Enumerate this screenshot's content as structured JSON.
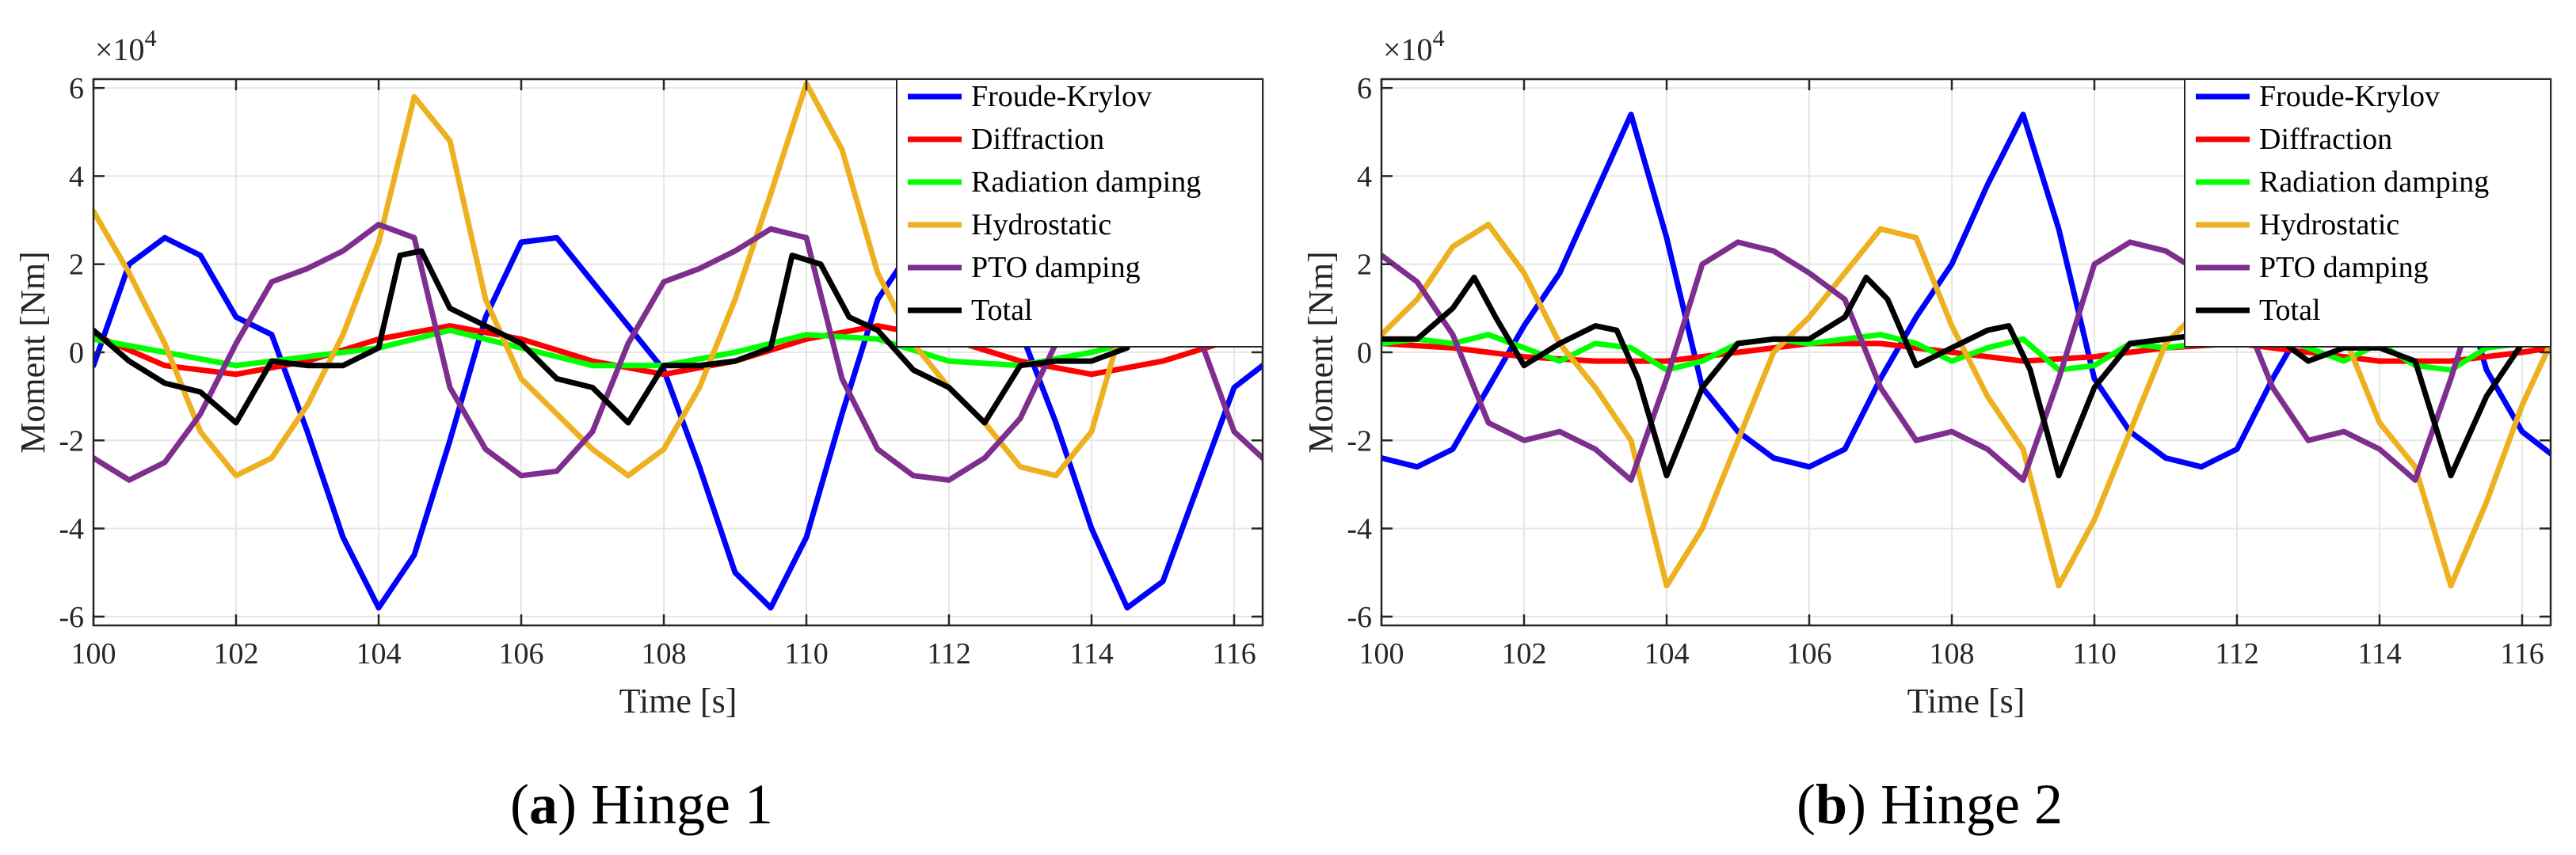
{
  "chart_data": [
    {
      "type": "line",
      "caption_letter": "(a)",
      "caption_text": " Hinge 1",
      "xlabel": "Time [s]",
      "ylabel": "Moment [Nm]",
      "y_multiplier": "×10",
      "y_multiplier_exp": "4",
      "xlim": [
        100,
        116.4
      ],
      "ylim": [
        -6.2,
        6.2
      ],
      "xticks": [
        100,
        102,
        104,
        106,
        108,
        110,
        112,
        114,
        116
      ],
      "yticks": [
        -6,
        -4,
        -2,
        0,
        2,
        4,
        6
      ],
      "grid": true,
      "legend_position": "top-right",
      "series": [
        {
          "name": "Froude-Krylov",
          "color": "#0000ff",
          "x": [
            100,
            100.5,
            101,
            101.5,
            102,
            102.5,
            103,
            103.5,
            104,
            104.5,
            105,
            105.5,
            106,
            106.5,
            107,
            107.5,
            108,
            108.5,
            109,
            109.5,
            110,
            110.5,
            111,
            111.5,
            112,
            112.5,
            113,
            113.5,
            114,
            114.5,
            115,
            115.5,
            116,
            116.4
          ],
          "y": [
            -0.3,
            2.0,
            2.6,
            2.2,
            0.8,
            0.4,
            -1.8,
            -4.2,
            -5.8,
            -4.6,
            -2.0,
            0.8,
            2.5,
            2.6,
            1.6,
            0.6,
            -0.4,
            -2.6,
            -5.0,
            -5.8,
            -4.2,
            -1.4,
            1.2,
            2.4,
            2.6,
            1.4,
            0.5,
            -1.6,
            -4.0,
            -5.8,
            -5.2,
            -3.0,
            -0.8,
            -0.3
          ]
        },
        {
          "name": "Diffraction",
          "color": "#ff0000",
          "x": [
            100,
            101,
            102,
            103,
            104,
            105,
            106,
            107,
            108,
            109,
            110,
            111,
            112,
            113,
            114,
            115,
            116,
            116.4
          ],
          "y": [
            0.4,
            -0.3,
            -0.5,
            -0.2,
            0.3,
            0.6,
            0.3,
            -0.2,
            -0.5,
            -0.2,
            0.3,
            0.6,
            0.3,
            -0.2,
            -0.5,
            -0.2,
            0.3,
            0.4
          ]
        },
        {
          "name": "Radiation damping",
          "color": "#00ff00",
          "x": [
            100,
            101,
            102,
            103,
            104,
            105,
            106,
            107,
            108,
            109,
            110,
            111,
            112,
            113,
            114,
            115,
            116,
            116.4
          ],
          "y": [
            0.3,
            0.0,
            -0.3,
            -0.1,
            0.1,
            0.5,
            0.1,
            -0.3,
            -0.3,
            0.0,
            0.4,
            0.3,
            -0.2,
            -0.3,
            0.0,
            0.4,
            0.3,
            0.3
          ]
        },
        {
          "name": "Hydrostatic",
          "color": "#edb120",
          "x": [
            100,
            100.5,
            101,
            101.5,
            102,
            102.5,
            103,
            103.5,
            104,
            104.5,
            105,
            105.5,
            106,
            106.5,
            107,
            107.5,
            108,
            108.5,
            109,
            109.5,
            110,
            110.5,
            111,
            111.5,
            112,
            112.5,
            113,
            113.5,
            114,
            114.5,
            115,
            115.5,
            116,
            116.4
          ],
          "y": [
            3.2,
            1.8,
            0.2,
            -1.8,
            -2.8,
            -2.4,
            -1.2,
            0.4,
            2.5,
            5.8,
            4.8,
            1.2,
            -0.6,
            -1.4,
            -2.2,
            -2.8,
            -2.2,
            -0.8,
            1.2,
            3.6,
            6.1,
            4.6,
            1.8,
            0.2,
            -0.8,
            -1.6,
            -2.6,
            -2.8,
            -1.8,
            1.0,
            4.0,
            6.0,
            4.6,
            3.4
          ]
        },
        {
          "name": "PTO damping",
          "color": "#7e2f8e",
          "x": [
            100,
            100.5,
            101,
            101.5,
            102,
            102.5,
            103,
            103.5,
            104,
            104.5,
            105,
            105.5,
            106,
            106.5,
            107,
            107.5,
            108,
            108.5,
            109,
            109.5,
            110,
            110.5,
            111,
            111.5,
            112,
            112.5,
            113,
            113.5,
            114,
            114.5,
            115,
            115.5,
            116,
            116.4
          ],
          "y": [
            -2.4,
            -2.9,
            -2.5,
            -1.4,
            0.2,
            1.6,
            1.9,
            2.3,
            2.9,
            2.6,
            -0.8,
            -2.2,
            -2.8,
            -2.7,
            -1.8,
            0.2,
            1.6,
            1.9,
            2.3,
            2.8,
            2.6,
            -0.6,
            -2.2,
            -2.8,
            -2.9,
            -2.4,
            -1.5,
            0.2,
            1.7,
            2.0,
            2.5,
            0.4,
            -1.8,
            -2.4
          ]
        },
        {
          "name": "Total",
          "color": "#000000",
          "x": [
            100,
            100.5,
            101,
            101.5,
            102,
            102.5,
            103,
            103.5,
            104,
            104.3,
            104.6,
            105,
            105.5,
            106,
            106.5,
            107,
            107.5,
            108,
            108.5,
            109,
            109.5,
            109.8,
            110.2,
            110.6,
            111,
            111.5,
            112,
            112.5,
            113,
            113.5,
            114,
            114.5,
            115,
            115.5,
            116,
            116.4
          ],
          "y": [
            0.5,
            -0.2,
            -0.7,
            -0.9,
            -1.6,
            -0.2,
            -0.3,
            -0.3,
            0.1,
            2.2,
            2.3,
            1.0,
            0.6,
            0.2,
            -0.6,
            -0.8,
            -1.6,
            -0.3,
            -0.3,
            -0.2,
            0.1,
            2.2,
            2.0,
            0.8,
            0.5,
            -0.4,
            -0.8,
            -1.6,
            -0.3,
            -0.2,
            -0.2,
            0.1,
            1.8,
            0.8,
            0.5,
            0.5
          ]
        }
      ]
    },
    {
      "type": "line",
      "caption_letter": "(b)",
      "caption_text": " Hinge 2",
      "xlabel": "Time [s]",
      "ylabel": "Moment [Nm]",
      "y_multiplier": "×10",
      "y_multiplier_exp": "4",
      "xlim": [
        100,
        116.4
      ],
      "ylim": [
        -6.2,
        6.2
      ],
      "xticks": [
        100,
        102,
        104,
        106,
        108,
        110,
        112,
        114,
        116
      ],
      "yticks": [
        -6,
        -4,
        -2,
        0,
        2,
        4,
        6
      ],
      "grid": true,
      "legend_position": "top-right",
      "series": [
        {
          "name": "Froude-Krylov",
          "color": "#0000ff",
          "x": [
            100,
            100.5,
            101,
            101.5,
            102,
            102.5,
            103,
            103.5,
            104,
            104.5,
            105,
            105.5,
            106,
            106.5,
            107,
            107.5,
            108,
            108.5,
            109,
            109.5,
            110,
            110.5,
            111,
            111.5,
            112,
            112.5,
            113,
            113.5,
            114,
            114.5,
            115,
            115.5,
            116,
            116.4
          ],
          "y": [
            -2.4,
            -2.6,
            -2.2,
            -0.8,
            0.6,
            1.8,
            3.6,
            5.4,
            2.6,
            -0.8,
            -1.8,
            -2.4,
            -2.6,
            -2.2,
            -0.6,
            0.8,
            2.0,
            3.8,
            5.4,
            2.8,
            -0.6,
            -1.8,
            -2.4,
            -2.6,
            -2.2,
            -0.6,
            0.8,
            2.2,
            3.8,
            5.2,
            2.4,
            -0.4,
            -1.8,
            -2.3
          ]
        },
        {
          "name": "Diffraction",
          "color": "#ff0000",
          "x": [
            100,
            101,
            102,
            103,
            104,
            105,
            106,
            107,
            108,
            109,
            110,
            111,
            112,
            113,
            114,
            115,
            116,
            116.4
          ],
          "y": [
            0.2,
            0.1,
            -0.1,
            -0.2,
            -0.2,
            0.0,
            0.2,
            0.2,
            0.0,
            -0.2,
            -0.1,
            0.1,
            0.2,
            0.0,
            -0.2,
            -0.2,
            0.0,
            0.1
          ]
        },
        {
          "name": "Radiation damping",
          "color": "#00ff00",
          "x": [
            100,
            100.5,
            101,
            101.5,
            102,
            102.5,
            103,
            103.5,
            104,
            104.5,
            105,
            105.5,
            106,
            106.5,
            107,
            107.5,
            108,
            108.5,
            109,
            109.5,
            110,
            110.5,
            111,
            111.5,
            112,
            112.5,
            113,
            113.5,
            114,
            114.5,
            115,
            115.5,
            116,
            116.4
          ],
          "y": [
            0.2,
            0.3,
            0.2,
            0.4,
            0.1,
            -0.2,
            0.2,
            0.1,
            -0.4,
            -0.2,
            0.2,
            0.3,
            0.2,
            0.3,
            0.4,
            0.2,
            -0.2,
            0.1,
            0.3,
            -0.4,
            -0.3,
            0.2,
            0.1,
            0.2,
            0.3,
            0.4,
            0.1,
            -0.2,
            0.2,
            -0.3,
            -0.4,
            0.1,
            0.2,
            0.2
          ]
        },
        {
          "name": "Hydrostatic",
          "color": "#edb120",
          "x": [
            100,
            100.5,
            101,
            101.5,
            102,
            102.5,
            103,
            103.5,
            104,
            104.5,
            105,
            105.5,
            106,
            106.5,
            107,
            107.5,
            108,
            108.5,
            109,
            109.5,
            110,
            110.5,
            111,
            111.5,
            112,
            112.5,
            113,
            113.5,
            114,
            114.5,
            115,
            115.5,
            116,
            116.4
          ],
          "y": [
            0.4,
            1.2,
            2.4,
            2.9,
            1.8,
            0.2,
            -0.8,
            -2.0,
            -5.3,
            -4.0,
            -2.0,
            0.0,
            0.8,
            1.8,
            2.8,
            2.6,
            0.6,
            -1.0,
            -2.2,
            -5.3,
            -3.8,
            -1.8,
            0.2,
            1.0,
            1.8,
            2.8,
            2.6,
            0.4,
            -1.6,
            -2.6,
            -5.3,
            -3.4,
            -1.2,
            0.2
          ]
        },
        {
          "name": "PTO damping",
          "color": "#7e2f8e",
          "x": [
            100,
            100.5,
            101,
            101.5,
            102,
            102.5,
            103,
            103.5,
            104,
            104.5,
            105,
            105.5,
            106,
            106.5,
            107,
            107.5,
            108,
            108.5,
            109,
            109.5,
            110,
            110.5,
            111,
            111.5,
            112,
            112.5,
            113,
            113.5,
            114,
            114.5,
            115,
            115.5,
            116,
            116.4
          ],
          "y": [
            2.2,
            1.6,
            0.4,
            -1.6,
            -2.0,
            -1.8,
            -2.2,
            -2.9,
            -0.6,
            2.0,
            2.5,
            2.3,
            1.8,
            1.2,
            -0.8,
            -2.0,
            -1.8,
            -2.2,
            -2.9,
            -0.6,
            2.0,
            2.5,
            2.3,
            1.8,
            1.2,
            -0.8,
            -2.0,
            -1.8,
            -2.2,
            -2.9,
            -0.6,
            2.0,
            2.4,
            2.3
          ]
        },
        {
          "name": "Total",
          "color": "#000000",
          "x": [
            100,
            100.5,
            101,
            101.3,
            101.6,
            102,
            102.5,
            103,
            103.3,
            103.6,
            104,
            104.5,
            105,
            105.5,
            106,
            106.5,
            106.8,
            107.1,
            107.5,
            108,
            108.5,
            108.8,
            109.1,
            109.5,
            110,
            110.5,
            111,
            111.5,
            112,
            112.5,
            113,
            113.5,
            114,
            114.5,
            115,
            115.5,
            116,
            116.4
          ],
          "y": [
            0.3,
            0.3,
            1.0,
            1.7,
            0.8,
            -0.3,
            0.2,
            0.6,
            0.5,
            -0.6,
            -2.8,
            -0.8,
            0.2,
            0.3,
            0.3,
            0.8,
            1.7,
            1.2,
            -0.3,
            0.1,
            0.5,
            0.6,
            -0.4,
            -2.8,
            -0.8,
            0.2,
            0.3,
            0.4,
            0.4,
            0.4,
            -0.2,
            0.1,
            0.1,
            -0.2,
            -2.8,
            -1.0,
            0.2,
            0.3
          ]
        }
      ]
    }
  ]
}
